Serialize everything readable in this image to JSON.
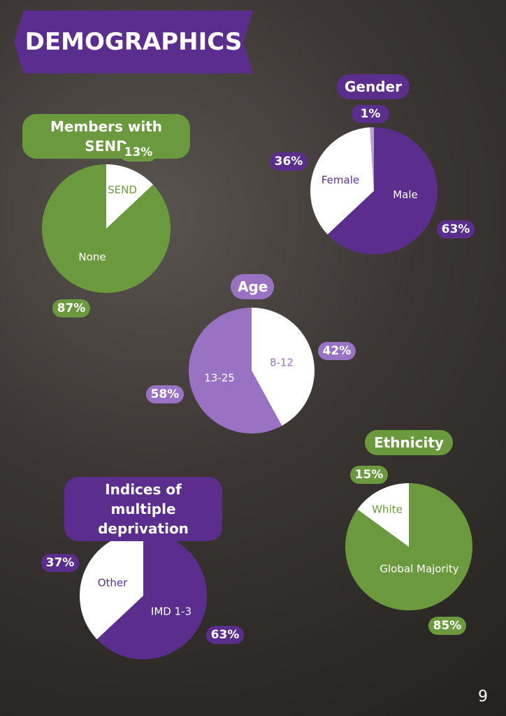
{
  "title": "DEMOGRAPHICS",
  "page_number": "9",
  "chart_data": [
    {
      "type": "pie",
      "title": "Members with SEND",
      "categories": [
        "SEND",
        "None"
      ],
      "values": [
        13,
        87
      ],
      "value_labels": [
        "13%",
        "87%"
      ],
      "colors": [
        "#ffffff",
        "#6b9a3e"
      ],
      "label_color": "#6b9a3e"
    },
    {
      "type": "pie",
      "title": "Gender",
      "categories": [
        "Male",
        "Female",
        null
      ],
      "values": [
        63,
        36,
        1
      ],
      "value_labels": [
        "63%",
        "36%",
        "1%"
      ],
      "colors": [
        "#5b2e8e",
        "#ffffff",
        "#b8a2d4"
      ],
      "label_color": "#5b2e8e"
    },
    {
      "type": "pie",
      "title": "Age",
      "categories": [
        "8-12",
        "13-25"
      ],
      "values": [
        42,
        58
      ],
      "value_labels": [
        "42%",
        "58%"
      ],
      "colors": [
        "#ffffff",
        "#9a72c4"
      ],
      "label_color": "#9a72c4"
    },
    {
      "type": "pie",
      "title": "Ethnicity",
      "categories": [
        "Global Majority",
        "White"
      ],
      "values": [
        85,
        15
      ],
      "value_labels": [
        "85%",
        "15%"
      ],
      "colors": [
        "#6b9a3e",
        "#ffffff"
      ],
      "label_color": "#6b9a3e"
    },
    {
      "type": "pie",
      "title": "Indices of multiple deprivation",
      "categories": [
        "IMD 1-3",
        "Other"
      ],
      "values": [
        63,
        37
      ],
      "value_labels": [
        "63%",
        "37%"
      ],
      "colors": [
        "#5b2e8e",
        "#ffffff"
      ],
      "label_color": "#5b2e8e"
    }
  ]
}
